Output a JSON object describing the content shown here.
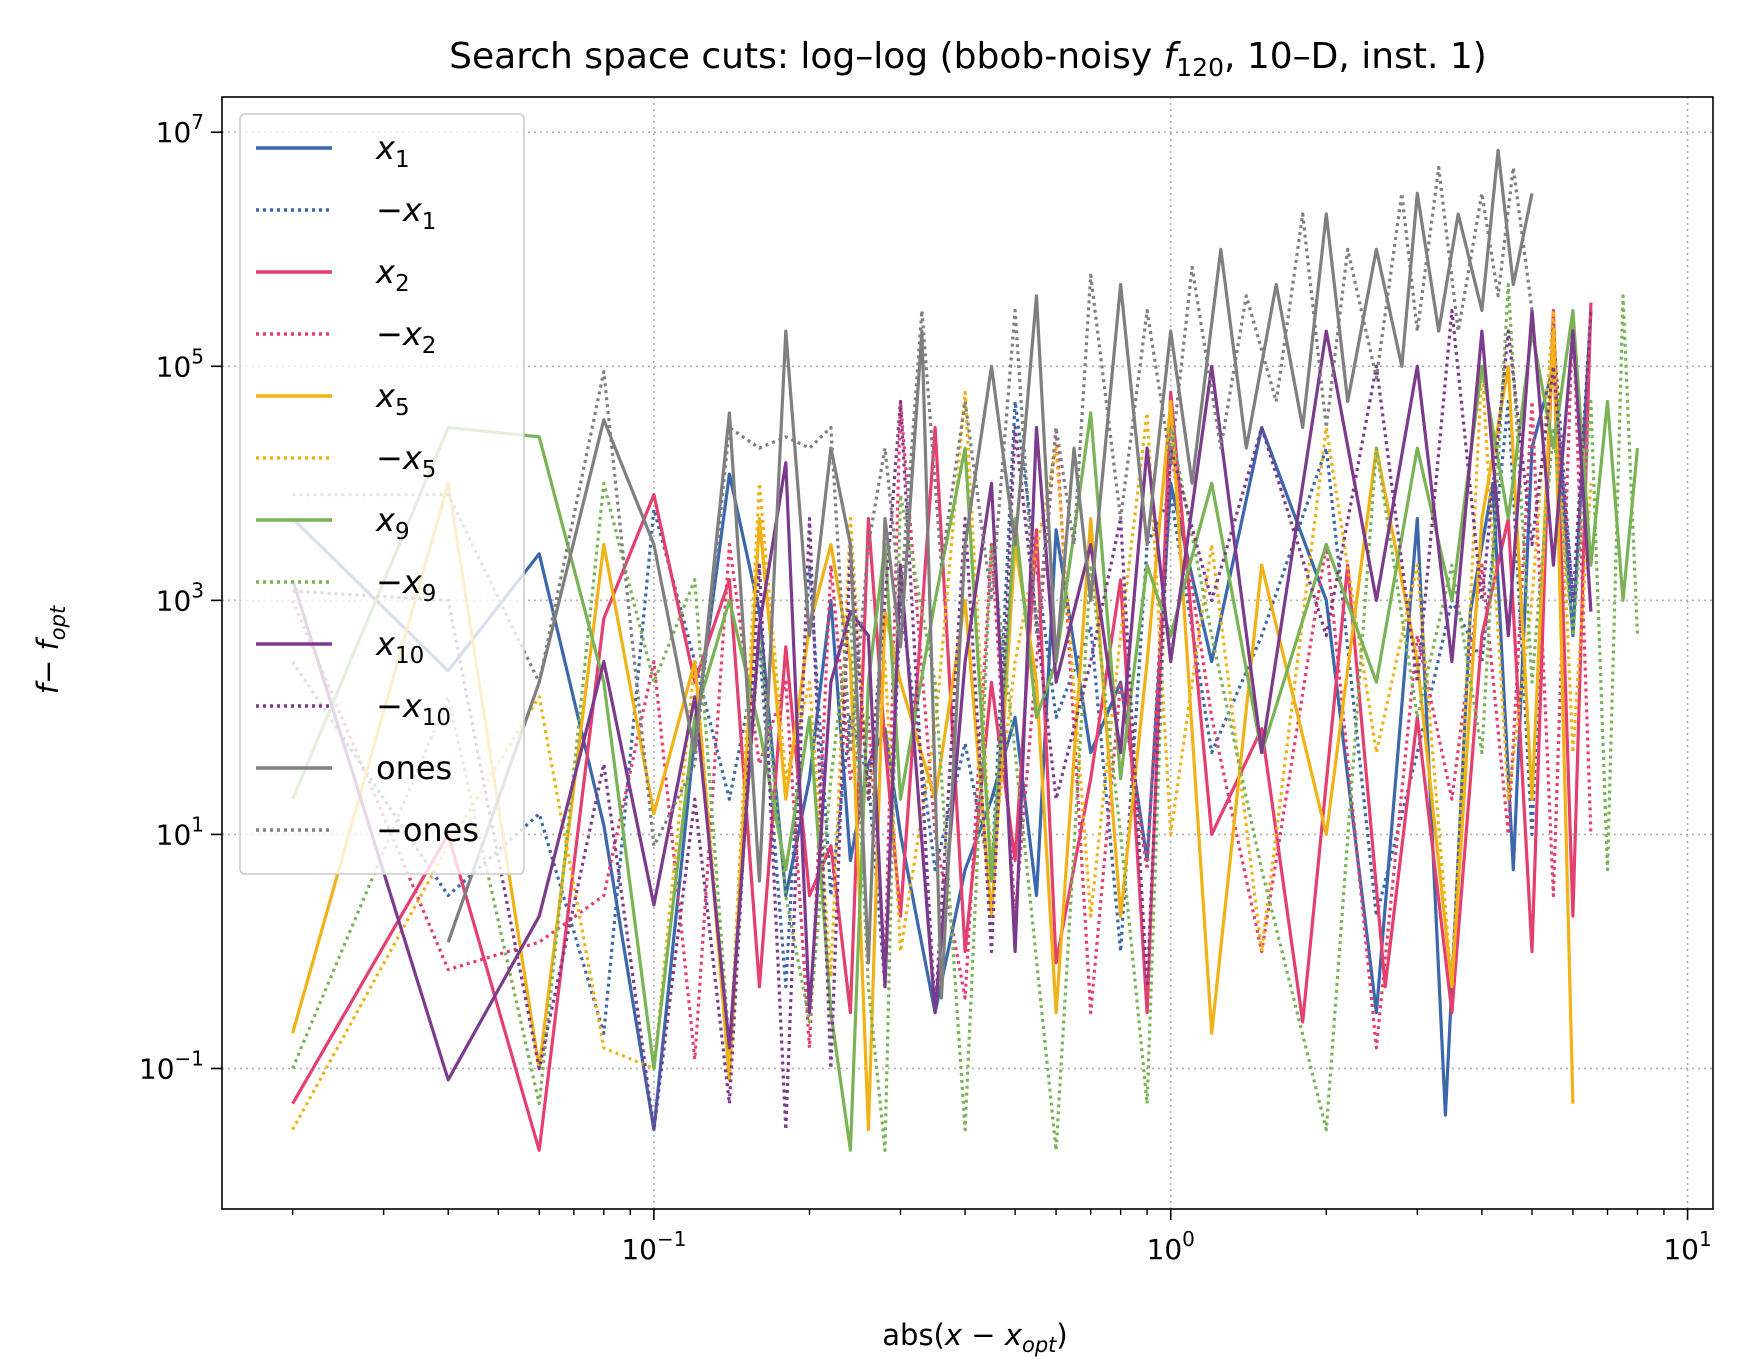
{
  "chart_data": {
    "type": "line",
    "title_prefix": "Search space cuts: log–log (bbob-noisy ",
    "title_func": "f",
    "title_sub": "120",
    "title_suffix": ", 10–D, inst. 1)",
    "xlabel": "abs(x − x_opt)",
    "ylabel": "f − f_opt",
    "x_scale": "log",
    "y_scale": "log",
    "xlim": [
      0.0146,
      11.2
    ],
    "ylim": [
      0.0063,
      20000000
    ],
    "grid": true,
    "legend_position": "upper left",
    "x_ticks": [
      {
        "value": 0.1,
        "base": "10",
        "exp": "−1"
      },
      {
        "value": 1,
        "base": "10",
        "exp": "0"
      },
      {
        "value": 10,
        "base": "10",
        "exp": "1"
      }
    ],
    "y_ticks": [
      {
        "value": 0.1,
        "base": "10",
        "exp": "−1"
      },
      {
        "value": 10,
        "base": "10",
        "exp": "1"
      },
      {
        "value": 1000,
        "base": "10",
        "exp": "3"
      },
      {
        "value": 100000,
        "base": "10",
        "exp": "5"
      },
      {
        "value": 10000000,
        "base": "10",
        "exp": "7"
      }
    ],
    "series": [
      {
        "name": "x1",
        "var": "x",
        "sub": "1",
        "neg": false,
        "dash": false,
        "color": "#3b67ab",
        "x": [
          0.02,
          0.04,
          0.06,
          0.08,
          0.1,
          0.12,
          0.14,
          0.16,
          0.18,
          0.2,
          0.22,
          0.24,
          0.26,
          0.28,
          0.3,
          0.35,
          0.4,
          0.45,
          0.5,
          0.55,
          0.6,
          0.7,
          0.8,
          0.9,
          1.0,
          1.2,
          1.5,
          2.0,
          2.5,
          3.0,
          3.4,
          3.8,
          4.2,
          4.6,
          5.0,
          5.5,
          6.0,
          6.5
        ],
        "y": [
          5000,
          250,
          2500,
          12,
          0.03,
          70,
          12000,
          800,
          3,
          30,
          1000,
          6,
          40,
          80,
          10,
          0.3,
          5,
          20,
          100,
          3,
          4000,
          50,
          200,
          6,
          10000,
          300,
          30000,
          1000,
          0.3,
          5000,
          0.04,
          800,
          10000,
          5,
          20000,
          100000,
          500,
          300000
        ]
      },
      {
        "name": "-x1",
        "var": "x",
        "sub": "1",
        "neg": true,
        "dash": true,
        "color": "#3b67ab",
        "x": [
          0.02,
          0.04,
          0.06,
          0.08,
          0.1,
          0.12,
          0.14,
          0.16,
          0.18,
          0.2,
          0.22,
          0.24,
          0.26,
          0.28,
          0.3,
          0.35,
          0.4,
          0.45,
          0.5,
          0.6,
          0.7,
          0.8,
          0.9,
          1.0,
          1.2,
          1.5,
          2.0,
          2.5,
          3.0,
          3.5,
          4.0,
          4.5,
          5.0,
          5.5,
          6.0
        ],
        "y": [
          300,
          3,
          15,
          0.2,
          6000,
          300,
          20,
          400,
          0.5,
          2000,
          3,
          100,
          30,
          0.5,
          1000,
          5,
          60,
          4,
          50000,
          100,
          600,
          1,
          3000,
          8000,
          50,
          500,
          20000,
          2,
          50,
          1000,
          300,
          50000,
          10,
          200000,
          1000
        ]
      },
      {
        "name": "x2",
        "var": "x",
        "sub": "2",
        "neg": false,
        "dash": false,
        "color": "#e33f6f",
        "x": [
          0.02,
          0.04,
          0.06,
          0.08,
          0.1,
          0.12,
          0.14,
          0.16,
          0.18,
          0.2,
          0.22,
          0.24,
          0.26,
          0.28,
          0.3,
          0.35,
          0.4,
          0.45,
          0.5,
          0.55,
          0.6,
          0.7,
          0.8,
          0.9,
          1.0,
          1.2,
          1.5,
          1.8,
          2.2,
          2.6,
          3.0,
          3.5,
          4.0,
          4.5,
          5.0,
          5.5,
          6.0,
          6.5
        ],
        "y": [
          0.05,
          10,
          0.02,
          700,
          8000,
          200,
          1500,
          0.5,
          400,
          3,
          8,
          0.3,
          5000,
          60,
          2,
          30000,
          1,
          200,
          6,
          4000,
          0.8,
          30,
          1500,
          0.3,
          60000,
          10,
          80,
          0.25,
          2000,
          0.5,
          100,
          0.3,
          500,
          5000,
          1,
          300000,
          2,
          350000
        ]
      },
      {
        "name": "-x2",
        "var": "x",
        "sub": "2",
        "neg": true,
        "dash": true,
        "color": "#e33f6f",
        "x": [
          0.02,
          0.04,
          0.06,
          0.08,
          0.1,
          0.12,
          0.14,
          0.16,
          0.18,
          0.2,
          0.22,
          0.24,
          0.26,
          0.28,
          0.3,
          0.35,
          0.4,
          0.45,
          0.5,
          0.6,
          0.7,
          0.8,
          0.9,
          1.0,
          1.2,
          1.5,
          2.0,
          2.5,
          3.0,
          3.5,
          4.0,
          4.5,
          5.0,
          5.5,
          6.0,
          6.5
        ],
        "y": [
          1000,
          0.7,
          1.2,
          3,
          300,
          0.12,
          3000,
          40,
          200,
          0.15,
          2000,
          30,
          100,
          0.8,
          50000,
          10,
          0.4,
          3000,
          2,
          30000,
          0.3,
          200,
          5,
          20000,
          100,
          1,
          3000,
          0.15,
          500,
          20,
          2000,
          10,
          50000,
          3,
          300000,
          10
        ]
      },
      {
        "name": "x5",
        "var": "x",
        "sub": "5",
        "neg": false,
        "dash": false,
        "color": "#f0b216",
        "x": [
          0.02,
          0.04,
          0.06,
          0.08,
          0.1,
          0.12,
          0.14,
          0.16,
          0.18,
          0.2,
          0.22,
          0.24,
          0.26,
          0.28,
          0.3,
          0.35,
          0.4,
          0.45,
          0.5,
          0.55,
          0.6,
          0.7,
          0.8,
          0.9,
          1.0,
          1.2,
          1.5,
          2.0,
          2.5,
          3.0,
          3.5,
          4.0,
          4.5,
          5.0,
          5.5,
          6.0
        ],
        "y": [
          0.2,
          10000,
          0.1,
          3000,
          15,
          300,
          0.08,
          5000,
          20,
          600,
          3000,
          300,
          0.03,
          800,
          200,
          20,
          1000,
          2,
          3000,
          200,
          0.3,
          5000,
          2,
          300,
          50000,
          0.2,
          2000,
          10,
          20000,
          300,
          0.5,
          5000,
          100000,
          20,
          200000,
          0.05
        ]
      },
      {
        "name": "-x5",
        "var": "x",
        "sub": "5",
        "neg": true,
        "dash": true,
        "color": "#f0b216",
        "x": [
          0.02,
          0.04,
          0.06,
          0.08,
          0.1,
          0.12,
          0.14,
          0.16,
          0.18,
          0.2,
          0.22,
          0.24,
          0.26,
          0.28,
          0.3,
          0.35,
          0.4,
          0.45,
          0.5,
          0.6,
          0.7,
          0.8,
          0.9,
          1.0,
          1.2,
          1.5,
          2.0,
          2.5,
          3.0,
          3.5,
          4.0,
          4.5,
          5.0,
          5.5,
          6.0,
          6.5
        ],
        "y": [
          0.03,
          8,
          150,
          0.15,
          0.1,
          300,
          0.12,
          10000,
          30,
          200,
          0.6,
          5000,
          20,
          300,
          1,
          80,
          60000,
          5,
          300,
          20000,
          2,
          500,
          40000,
          10,
          3000,
          1,
          30000,
          50,
          2000,
          0.5,
          100000,
          20,
          1000,
          300000,
          50,
          10000
        ]
      },
      {
        "name": "x9",
        "var": "x",
        "sub": "9",
        "neg": false,
        "dash": false,
        "color": "#7ab356",
        "x": [
          0.02,
          0.04,
          0.06,
          0.08,
          0.1,
          0.12,
          0.14,
          0.16,
          0.18,
          0.2,
          0.22,
          0.24,
          0.26,
          0.28,
          0.3,
          0.35,
          0.4,
          0.45,
          0.5,
          0.55,
          0.6,
          0.7,
          0.8,
          0.9,
          1.0,
          1.2,
          1.5,
          2.0,
          2.5,
          3.0,
          3.5,
          4.0,
          4.5,
          5.0,
          5.5,
          6.0,
          6.5,
          7.0,
          7.5,
          8.0
        ],
        "y": [
          20,
          30000,
          25000,
          200,
          0.1,
          100,
          1000,
          80,
          5,
          100,
          0.3,
          0.02,
          200,
          3000,
          20,
          1000,
          20000,
          4,
          5000,
          100,
          300,
          40000,
          30,
          2000,
          500,
          10000,
          50,
          3000,
          200,
          20000,
          1000,
          100000,
          5000,
          200000,
          20000,
          300000,
          2000,
          50000,
          1000,
          20000
        ]
      },
      {
        "name": "-x9",
        "var": "x",
        "sub": "9",
        "neg": true,
        "dash": true,
        "color": "#7ab356",
        "x": [
          0.02,
          0.04,
          0.06,
          0.08,
          0.1,
          0.12,
          0.14,
          0.16,
          0.18,
          0.2,
          0.22,
          0.24,
          0.26,
          0.28,
          0.3,
          0.35,
          0.4,
          0.45,
          0.5,
          0.6,
          0.7,
          0.8,
          0.9,
          1.0,
          1.2,
          1.5,
          2.0,
          2.5,
          3.0,
          3.5,
          4.0,
          4.5,
          5.0,
          5.5,
          6.0,
          6.5,
          7.0,
          7.5,
          8.0
        ],
        "y": [
          0.1,
          150,
          0.05,
          10000,
          200,
          1500,
          0.15,
          500,
          3,
          0.25,
          30,
          800,
          0.5,
          0.02,
          8000,
          200,
          0.03,
          3000,
          50,
          0.02,
          2000,
          10,
          0.05,
          30000,
          500,
          5,
          0.03,
          20000,
          100,
          2000,
          50,
          500000,
          200,
          30000,
          500,
          50000,
          5,
          400000,
          500
        ]
      },
      {
        "name": "x10",
        "var": "x",
        "sub": "10",
        "neg": false,
        "dash": false,
        "color": "#7b3a8b",
        "x": [
          0.02,
          0.04,
          0.06,
          0.08,
          0.1,
          0.12,
          0.14,
          0.16,
          0.18,
          0.2,
          0.22,
          0.24,
          0.26,
          0.28,
          0.3,
          0.35,
          0.4,
          0.45,
          0.5,
          0.55,
          0.6,
          0.7,
          0.8,
          0.9,
          1.0,
          1.2,
          1.5,
          2.0,
          2.5,
          3.0,
          3.5,
          4.0,
          4.5,
          5.0,
          5.5,
          6.0,
          6.5
        ],
        "y": [
          1500,
          0.08,
          2,
          300,
          2.5,
          150,
          0.15,
          600,
          15000,
          0.3,
          200,
          800,
          500,
          0.5,
          2000,
          0.3,
          300,
          10000,
          1,
          30000,
          200,
          3000,
          50,
          20000,
          300,
          100000,
          50,
          200000,
          1000,
          100000,
          300,
          200000,
          500,
          300000,
          2000,
          200000,
          800
        ]
      },
      {
        "name": "-x10",
        "var": "x",
        "sub": "10",
        "neg": true,
        "dash": true,
        "color": "#7b3a8b",
        "x": [
          0.02,
          0.04,
          0.06,
          0.08,
          0.1,
          0.12,
          0.14,
          0.16,
          0.18,
          0.2,
          0.22,
          0.24,
          0.26,
          0.28,
          0.3,
          0.35,
          0.4,
          0.45,
          0.5,
          0.6,
          0.7,
          0.8,
          0.9,
          1.0,
          1.2,
          1.5,
          2.0,
          2.5,
          3.0,
          3.5,
          4.0,
          4.5,
          5.0,
          5.5,
          6.0,
          6.5
        ],
        "y": [
          1200,
          1000,
          0.1,
          40,
          0.03,
          20,
          0.05,
          2000,
          0.03,
          5000,
          0.1,
          3000,
          20,
          1000,
          50000,
          0.3,
          5000,
          1,
          30000,
          20,
          300,
          5000,
          0.5,
          20000,
          1000,
          30000,
          500,
          100000,
          200,
          300000,
          1000,
          200000,
          3000,
          100000,
          1000,
          300000
        ]
      },
      {
        "name": "ones",
        "var": "ones",
        "sub": "",
        "neg": false,
        "dash": false,
        "color": "#7f7f7f",
        "x": [
          0.04,
          0.06,
          0.08,
          0.1,
          0.12,
          0.14,
          0.16,
          0.18,
          0.2,
          0.22,
          0.24,
          0.26,
          0.28,
          0.3,
          0.33,
          0.36,
          0.4,
          0.45,
          0.5,
          0.55,
          0.6,
          0.65,
          0.7,
          0.8,
          0.9,
          1.0,
          1.1,
          1.25,
          1.4,
          1.6,
          1.8,
          2.0,
          2.2,
          2.5,
          2.8,
          3.0,
          3.3,
          3.6,
          4.0,
          4.3,
          4.6,
          5.0
        ],
        "y": [
          1.2,
          200,
          35000,
          3000,
          50,
          40000,
          4,
          200000,
          500,
          20000,
          3000,
          0.8,
          5000,
          400,
          200000,
          0.4,
          3000,
          100000,
          3000,
          400000,
          300,
          20000,
          1000,
          500000,
          3000,
          200000,
          10000,
          1000000,
          20000,
          500000,
          30000,
          2000000,
          50000,
          1000000,
          100000,
          3000000,
          200000,
          2000000,
          300000,
          7000000,
          500000,
          3000000
        ]
      },
      {
        "name": "-ones",
        "var": "ones",
        "sub": "",
        "neg": true,
        "dash": true,
        "color": "#7f7f7f",
        "x": [
          0.02,
          0.04,
          0.06,
          0.08,
          0.1,
          0.12,
          0.14,
          0.16,
          0.18,
          0.2,
          0.22,
          0.24,
          0.26,
          0.28,
          0.3,
          0.33,
          0.36,
          0.4,
          0.45,
          0.5,
          0.55,
          0.6,
          0.65,
          0.7,
          0.8,
          0.9,
          1.0,
          1.1,
          1.25,
          1.4,
          1.6,
          1.8,
          2.0,
          2.2,
          2.5,
          2.8,
          3.0,
          3.3,
          3.6,
          4.0,
          4.3,
          4.6,
          5.0
        ],
        "y": [
          8000,
          8000,
          200,
          90000,
          8,
          40,
          30000,
          20000,
          25000,
          20000,
          30000,
          50,
          3000,
          20000,
          1000,
          300000,
          2000,
          50000,
          1000,
          300000,
          500,
          30000,
          3000,
          600000,
          5000,
          300000,
          15000,
          700000,
          20000,
          400000,
          50000,
          2000000,
          30000,
          1000000,
          80000,
          3000000,
          200000,
          5000000,
          200000,
          3000000,
          400000,
          5000000,
          300000
        ]
      }
    ]
  }
}
